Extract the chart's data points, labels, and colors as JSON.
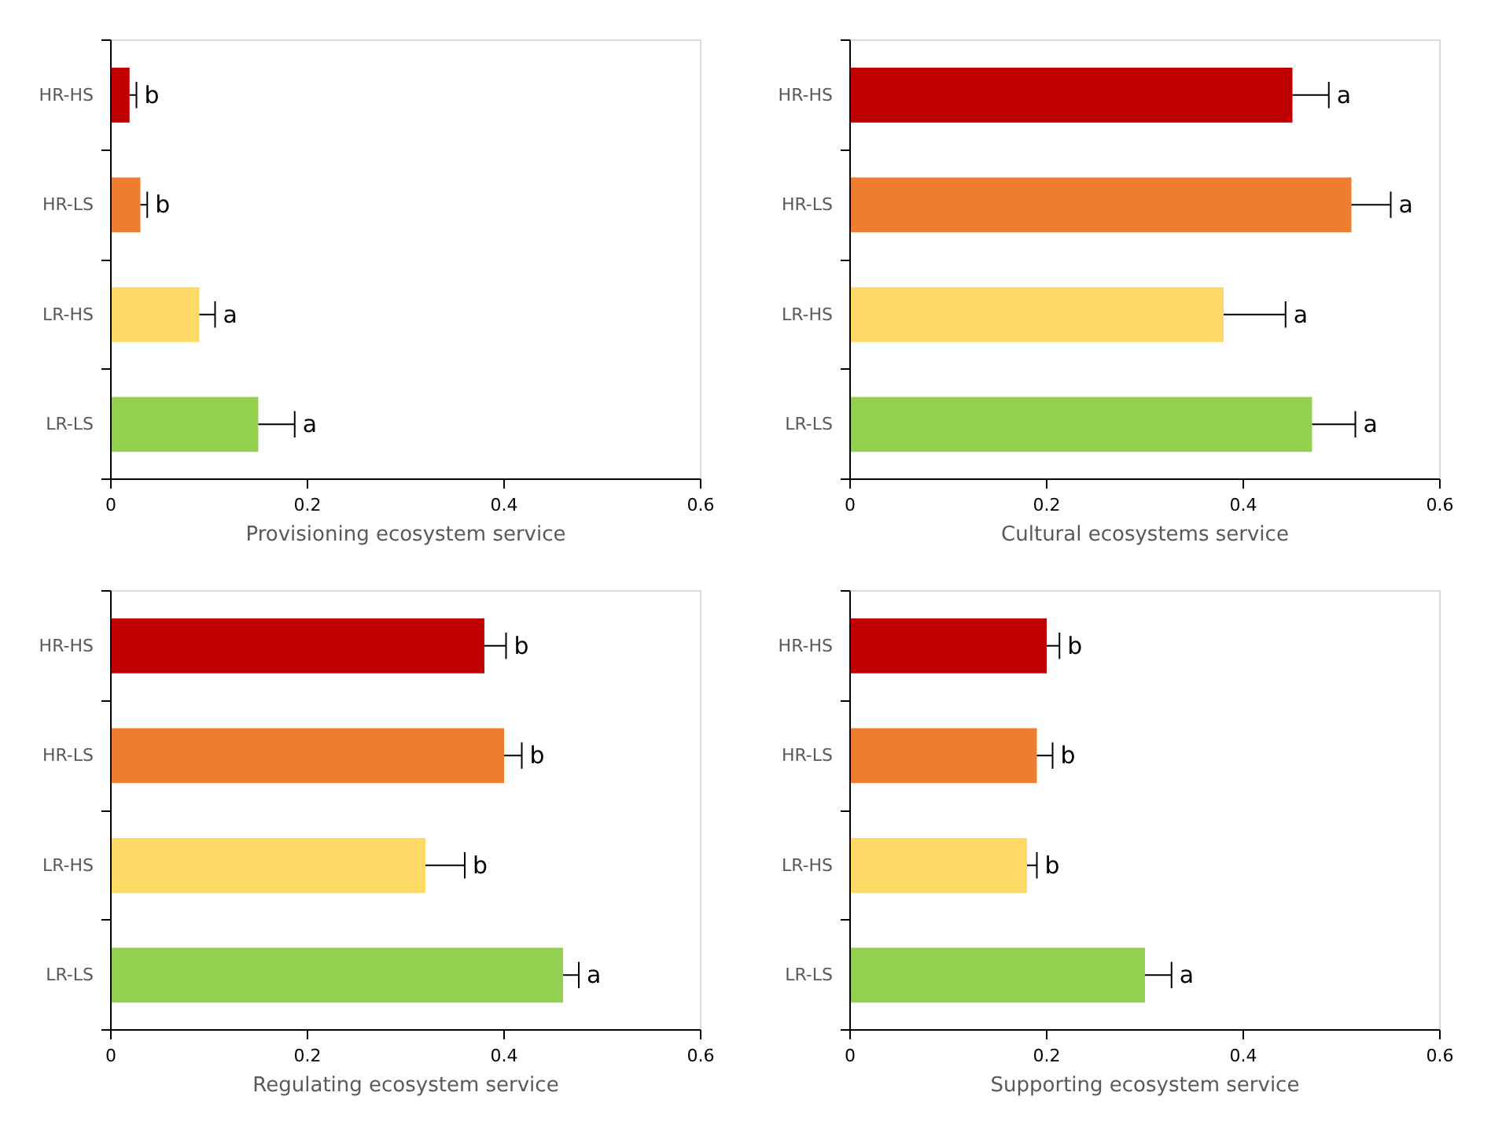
{
  "chart_data": [
    {
      "type": "bar",
      "orientation": "horizontal",
      "xlabel": "Provisioning ecosystem service",
      "categories": [
        "HR-HS",
        "HR-LS",
        "LR-HS",
        "LR-LS"
      ],
      "values": [
        0.019,
        0.03,
        0.09,
        0.15
      ],
      "errors": [
        0.007,
        0.007,
        0.016,
        0.037
      ],
      "colors": [
        "#c00000",
        "#ed7d31",
        "#ffd966",
        "#92d050"
      ],
      "xlim": [
        0,
        0.6
      ],
      "xticks": [
        0,
        0.2,
        0.4,
        0.6
      ],
      "grid": false,
      "value_labels": [
        "b",
        "b",
        "a",
        "a"
      ]
    },
    {
      "type": "bar",
      "orientation": "horizontal",
      "xlabel": "Cultural ecosystems service",
      "categories": [
        "HR-HS",
        "HR-LS",
        "LR-HS",
        "LR-LS"
      ],
      "values": [
        0.45,
        0.51,
        0.38,
        0.47
      ],
      "errors": [
        0.037,
        0.04,
        0.063,
        0.044
      ],
      "colors": [
        "#c00000",
        "#ed7d31",
        "#ffd966",
        "#92d050"
      ],
      "xlim": [
        0,
        0.6
      ],
      "xticks": [
        0,
        0.2,
        0.4,
        0.6
      ],
      "grid": false,
      "value_labels": [
        "a",
        "a",
        "a",
        "a"
      ]
    },
    {
      "type": "bar",
      "orientation": "horizontal",
      "xlabel": "Regulating ecosystem service",
      "categories": [
        "HR-HS",
        "HR-LS",
        "LR-HS",
        "LR-LS"
      ],
      "values": [
        0.38,
        0.4,
        0.32,
        0.46
      ],
      "errors": [
        0.022,
        0.018,
        0.04,
        0.016
      ],
      "colors": [
        "#c00000",
        "#ed7d31",
        "#ffd966",
        "#92d050"
      ],
      "xlim": [
        0,
        0.6
      ],
      "xticks": [
        0,
        0.2,
        0.4,
        0.6
      ],
      "grid": false,
      "value_labels": [
        "b",
        "b",
        "b",
        "a"
      ]
    },
    {
      "type": "bar",
      "orientation": "horizontal",
      "xlabel": "Supporting ecosystem service",
      "categories": [
        "HR-HS",
        "HR-LS",
        "LR-HS",
        "LR-LS"
      ],
      "values": [
        0.2,
        0.19,
        0.18,
        0.3
      ],
      "errors": [
        0.013,
        0.016,
        0.01,
        0.027
      ],
      "colors": [
        "#c00000",
        "#ed7d31",
        "#ffd966",
        "#92d050"
      ],
      "xlim": [
        0,
        0.6
      ],
      "xticks": [
        0,
        0.2,
        0.4,
        0.6
      ],
      "grid": false,
      "value_labels": [
        "b",
        "b",
        "b",
        "a"
      ]
    }
  ]
}
